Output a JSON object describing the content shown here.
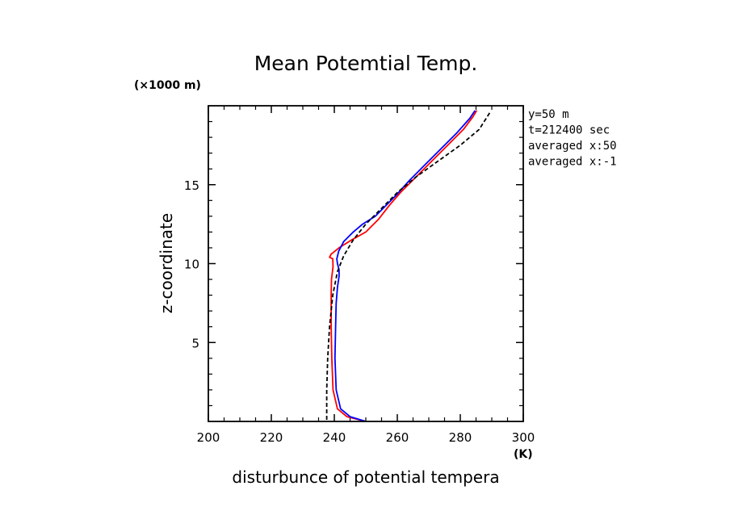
{
  "chart_data": {
    "type": "line",
    "title": "Mean Potemtial Temp.",
    "xlabel": "disturbunce of potential tempera",
    "ylabel": "z-coordinate",
    "x_unit": "(K)",
    "y_unit": "(×1000 m)",
    "xlim": [
      200,
      300
    ],
    "ylim": [
      0,
      20
    ],
    "x_ticks": [
      200,
      220,
      240,
      260,
      280,
      300
    ],
    "y_ticks": [
      5,
      10,
      15
    ],
    "annotations": [
      "y=50 m",
      "t=212400 sec",
      "averaged  x:50",
      "averaged  x:-1"
    ],
    "series": [
      {
        "color": "#ff0000",
        "x": [
          250,
          244,
          241,
          239.6,
          239.2,
          239,
          239,
          239.1,
          239.4,
          239.6,
          239.5,
          238.5,
          239,
          241.5,
          245.5,
          250,
          254,
          257.5,
          261,
          266,
          271,
          276,
          281,
          284,
          285.2
        ],
        "y": [
          0,
          0.3,
          0.8,
          2,
          4,
          6,
          8,
          9,
          9.5,
          9.8,
          10.3,
          10.4,
          10.6,
          11,
          11.5,
          12,
          12.8,
          13.7,
          14.5,
          15.5,
          16.5,
          17.5,
          18.5,
          19.3,
          19.7
        ]
      },
      {
        "color": "#0000ff",
        "x": [
          250,
          245,
          242,
          240.6,
          240.2,
          240.4,
          240.6,
          241,
          241.5,
          241.5,
          241,
          240.8,
          241.4,
          243,
          246,
          249,
          253,
          256,
          259.5,
          264,
          269,
          274,
          279,
          283,
          284.7
        ],
        "y": [
          0,
          0.3,
          0.8,
          2,
          4,
          6,
          7.5,
          8.5,
          9.2,
          9.6,
          10,
          10.3,
          10.8,
          11.4,
          12,
          12.5,
          13,
          13.6,
          14.3,
          15.3,
          16.3,
          17.3,
          18.3,
          19.2,
          19.7
        ]
      },
      {
        "color": "#000000",
        "dashed": true,
        "x": [
          237.6,
          237.6,
          237.9,
          238.5,
          239.5,
          241,
          243,
          246,
          250,
          255,
          260,
          266,
          273,
          280,
          286,
          289.5
        ],
        "y": [
          0.1,
          2,
          4,
          6,
          8,
          9.5,
          10.5,
          11.5,
          12.5,
          13.5,
          14.5,
          15.5,
          16.5,
          17.5,
          18.5,
          19.6
        ]
      }
    ]
  }
}
